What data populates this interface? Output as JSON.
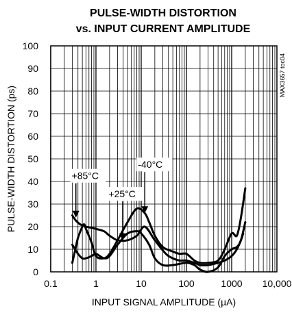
{
  "chart_data": {
    "type": "line",
    "title_line1": "PULSE-WIDTH DISTORTION",
    "title_line2": "vs. INPUT CURRENT AMPLITUDE",
    "xlabel": "INPUT SIGNAL AMPLITUDE (µA)",
    "ylabel": "PULSE-WIDTH DISTORTION (ps)",
    "side_label": "MAX3657 toc04",
    "x_scale": "log",
    "xlim": [
      0.1,
      10000
    ],
    "ylim": [
      0,
      100
    ],
    "x_ticks": [
      "0.1",
      "1",
      "10",
      "100",
      "1000",
      "10,000"
    ],
    "y_ticks": [
      "0",
      "10",
      "20",
      "30",
      "40",
      "50",
      "60",
      "70",
      "80",
      "90",
      "100"
    ],
    "grid": true,
    "series": [
      {
        "name": "+85°C",
        "x": [
          0.3,
          0.35,
          0.45,
          0.6,
          0.8,
          1,
          1.5,
          2,
          3,
          5,
          8,
          12,
          20,
          35,
          50,
          70,
          100,
          150,
          200,
          300,
          500,
          700,
          1000,
          1300,
          1600,
          1800
        ],
        "y": [
          25,
          23,
          21,
          20,
          19.5,
          19,
          18,
          16,
          14,
          14,
          16,
          20,
          14,
          8,
          6,
          5,
          5,
          4,
          3,
          3,
          4,
          5,
          7,
          10,
          14,
          17
        ]
      },
      {
        "name": "+25°C",
        "x": [
          0.3,
          0.4,
          0.5,
          0.6,
          0.8,
          1,
          1.5,
          2,
          3,
          5,
          8,
          10,
          15,
          20,
          30,
          50,
          100,
          150,
          200,
          300,
          500,
          700,
          1000,
          1300,
          1600,
          2000
        ],
        "y": [
          12,
          8,
          6,
          6,
          7,
          8,
          6,
          7,
          12,
          17,
          18,
          17,
          12,
          6,
          3,
          3,
          4,
          3,
          1,
          0,
          2,
          7,
          10,
          11,
          14,
          22
        ]
      },
      {
        "name": "-40°C",
        "x": [
          0.3,
          0.35,
          0.4,
          0.5,
          0.55,
          0.6,
          0.8,
          1,
          1.5,
          2,
          3,
          5,
          8,
          12,
          15,
          20,
          30,
          50,
          70,
          100,
          150,
          200,
          300,
          500,
          700,
          1000,
          1300,
          1600,
          2000
        ],
        "y": [
          4,
          10,
          15,
          20,
          21,
          19,
          13,
          7,
          6,
          8,
          14,
          22,
          28,
          26,
          22,
          16,
          11,
          9,
          8,
          8,
          5,
          4,
          4,
          5,
          10,
          17,
          16,
          24,
          37
        ]
      }
    ],
    "annotations": [
      {
        "text": "+85°C",
        "series": "+85°C",
        "label_x": 0.29,
        "label_y": 41,
        "arrow_x": 0.36,
        "arrow_y": 24
      },
      {
        "text": "+25°C",
        "series": "+25°C",
        "label_x": 1.9,
        "label_y": 33,
        "arrow_x": 3.9,
        "arrow_y": 14
      },
      {
        "text": "-40°C",
        "series": "-40°C",
        "label_x": 8.5,
        "label_y": 46,
        "arrow_x": 12,
        "arrow_y": 26
      }
    ]
  }
}
